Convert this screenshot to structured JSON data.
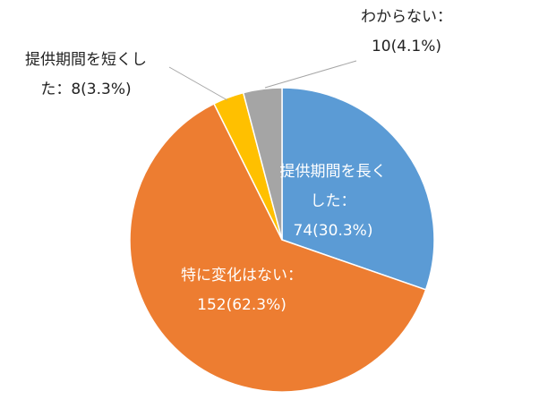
{
  "chart_data": {
    "type": "pie",
    "start_angle_deg": 0,
    "direction": "clockwise",
    "slices": [
      {
        "label": "提供期間を長くした",
        "value": 74,
        "percent": 30.3,
        "color": "#5b9bd5",
        "label_lines": [
          "提供期間を長く",
          "した：",
          "74(30.3%)"
        ],
        "label_position": "inside"
      },
      {
        "label": "特に変化はない",
        "value": 152,
        "percent": 62.3,
        "color": "#ed7d31",
        "label_lines": [
          "特に変化はない：",
          "152(62.3%)"
        ],
        "label_position": "inside"
      },
      {
        "label": "提供期間を短くした",
        "value": 8,
        "percent": 3.3,
        "color": "#ffc000",
        "label_lines": [
          "提供期間を短くし",
          "た：8(3.3%)"
        ],
        "label_position": "outside-left"
      },
      {
        "label": "わからない",
        "value": 10,
        "percent": 4.1,
        "color": "#a5a5a5",
        "label_lines": [
          "わからない：",
          "10(4.1%)"
        ],
        "label_position": "outside-top"
      }
    ]
  }
}
